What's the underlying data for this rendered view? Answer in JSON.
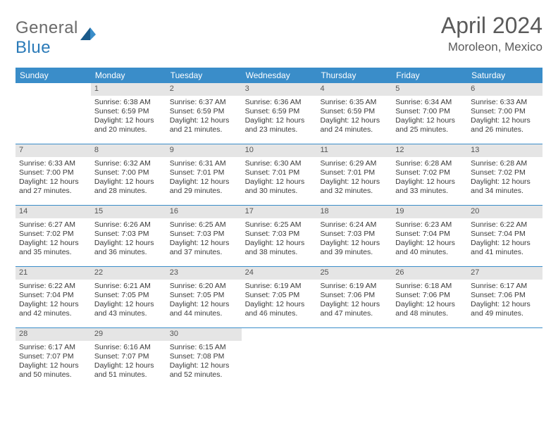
{
  "brand": {
    "text_gray": "General",
    "text_blue": "Blue"
  },
  "title": "April 2024",
  "location": "Moroleon, Mexico",
  "colors": {
    "header_bg": "#3a8dc9",
    "header_fg": "#ffffff",
    "daynum_bg": "#e5e5e5",
    "week_border": "#3a8dc9",
    "text": "#3a3a3a",
    "title_color": "#5a5a5a"
  },
  "day_names": [
    "Sunday",
    "Monday",
    "Tuesday",
    "Wednesday",
    "Thursday",
    "Friday",
    "Saturday"
  ],
  "weeks": [
    [
      {
        "day": null
      },
      {
        "day": 1,
        "sunrise": "6:38 AM",
        "sunset": "6:59 PM",
        "daylight": "12 hours and 20 minutes."
      },
      {
        "day": 2,
        "sunrise": "6:37 AM",
        "sunset": "6:59 PM",
        "daylight": "12 hours and 21 minutes."
      },
      {
        "day": 3,
        "sunrise": "6:36 AM",
        "sunset": "6:59 PM",
        "daylight": "12 hours and 23 minutes."
      },
      {
        "day": 4,
        "sunrise": "6:35 AM",
        "sunset": "6:59 PM",
        "daylight": "12 hours and 24 minutes."
      },
      {
        "day": 5,
        "sunrise": "6:34 AM",
        "sunset": "7:00 PM",
        "daylight": "12 hours and 25 minutes."
      },
      {
        "day": 6,
        "sunrise": "6:33 AM",
        "sunset": "7:00 PM",
        "daylight": "12 hours and 26 minutes."
      }
    ],
    [
      {
        "day": 7,
        "sunrise": "6:33 AM",
        "sunset": "7:00 PM",
        "daylight": "12 hours and 27 minutes."
      },
      {
        "day": 8,
        "sunrise": "6:32 AM",
        "sunset": "7:00 PM",
        "daylight": "12 hours and 28 minutes."
      },
      {
        "day": 9,
        "sunrise": "6:31 AM",
        "sunset": "7:01 PM",
        "daylight": "12 hours and 29 minutes."
      },
      {
        "day": 10,
        "sunrise": "6:30 AM",
        "sunset": "7:01 PM",
        "daylight": "12 hours and 30 minutes."
      },
      {
        "day": 11,
        "sunrise": "6:29 AM",
        "sunset": "7:01 PM",
        "daylight": "12 hours and 32 minutes."
      },
      {
        "day": 12,
        "sunrise": "6:28 AM",
        "sunset": "7:02 PM",
        "daylight": "12 hours and 33 minutes."
      },
      {
        "day": 13,
        "sunrise": "6:28 AM",
        "sunset": "7:02 PM",
        "daylight": "12 hours and 34 minutes."
      }
    ],
    [
      {
        "day": 14,
        "sunrise": "6:27 AM",
        "sunset": "7:02 PM",
        "daylight": "12 hours and 35 minutes."
      },
      {
        "day": 15,
        "sunrise": "6:26 AM",
        "sunset": "7:03 PM",
        "daylight": "12 hours and 36 minutes."
      },
      {
        "day": 16,
        "sunrise": "6:25 AM",
        "sunset": "7:03 PM",
        "daylight": "12 hours and 37 minutes."
      },
      {
        "day": 17,
        "sunrise": "6:25 AM",
        "sunset": "7:03 PM",
        "daylight": "12 hours and 38 minutes."
      },
      {
        "day": 18,
        "sunrise": "6:24 AM",
        "sunset": "7:03 PM",
        "daylight": "12 hours and 39 minutes."
      },
      {
        "day": 19,
        "sunrise": "6:23 AM",
        "sunset": "7:04 PM",
        "daylight": "12 hours and 40 minutes."
      },
      {
        "day": 20,
        "sunrise": "6:22 AM",
        "sunset": "7:04 PM",
        "daylight": "12 hours and 41 minutes."
      }
    ],
    [
      {
        "day": 21,
        "sunrise": "6:22 AM",
        "sunset": "7:04 PM",
        "daylight": "12 hours and 42 minutes."
      },
      {
        "day": 22,
        "sunrise": "6:21 AM",
        "sunset": "7:05 PM",
        "daylight": "12 hours and 43 minutes."
      },
      {
        "day": 23,
        "sunrise": "6:20 AM",
        "sunset": "7:05 PM",
        "daylight": "12 hours and 44 minutes."
      },
      {
        "day": 24,
        "sunrise": "6:19 AM",
        "sunset": "7:05 PM",
        "daylight": "12 hours and 46 minutes."
      },
      {
        "day": 25,
        "sunrise": "6:19 AM",
        "sunset": "7:06 PM",
        "daylight": "12 hours and 47 minutes."
      },
      {
        "day": 26,
        "sunrise": "6:18 AM",
        "sunset": "7:06 PM",
        "daylight": "12 hours and 48 minutes."
      },
      {
        "day": 27,
        "sunrise": "6:17 AM",
        "sunset": "7:06 PM",
        "daylight": "12 hours and 49 minutes."
      }
    ],
    [
      {
        "day": 28,
        "sunrise": "6:17 AM",
        "sunset": "7:07 PM",
        "daylight": "12 hours and 50 minutes."
      },
      {
        "day": 29,
        "sunrise": "6:16 AM",
        "sunset": "7:07 PM",
        "daylight": "12 hours and 51 minutes."
      },
      {
        "day": 30,
        "sunrise": "6:15 AM",
        "sunset": "7:08 PM",
        "daylight": "12 hours and 52 minutes."
      },
      {
        "day": null
      },
      {
        "day": null
      },
      {
        "day": null
      },
      {
        "day": null
      }
    ]
  ],
  "labels": {
    "sunrise_prefix": "Sunrise: ",
    "sunset_prefix": "Sunset: ",
    "daylight_prefix": "Daylight: "
  }
}
